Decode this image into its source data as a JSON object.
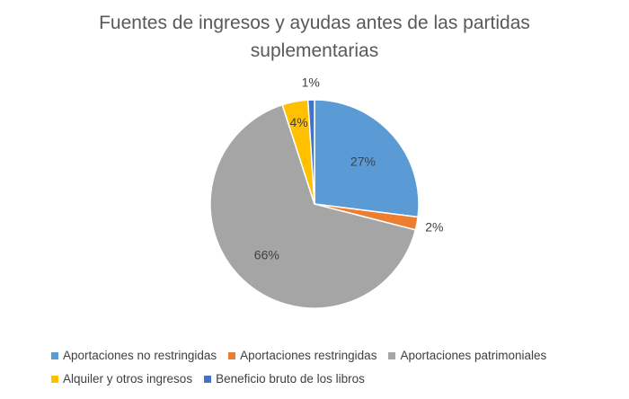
{
  "chart_data": {
    "type": "pie",
    "title": "Fuentes de ingresos y ayudas antes de las partidas suplementarias",
    "title_lines": [
      "Fuentes de ingresos y ayudas antes de las partidas",
      "suplementarias"
    ],
    "slices": [
      {
        "name": "Aportaciones no restringidas",
        "value": 27,
        "label": "27%",
        "color": "#5b9bd5"
      },
      {
        "name": "Aportaciones restringidas",
        "value": 2,
        "label": "2%",
        "color": "#ed7d31"
      },
      {
        "name": "Aportaciones patrimoniales",
        "value": 66,
        "label": "66%",
        "color": "#a5a5a5"
      },
      {
        "name": "Alquiler y otros ingresos",
        "value": 4,
        "label": "4%",
        "color": "#ffc000"
      },
      {
        "name": "Beneficio bruto de los libros",
        "value": 1,
        "label": "1%",
        "color": "#4472c4"
      }
    ],
    "legend_position": "bottom"
  }
}
